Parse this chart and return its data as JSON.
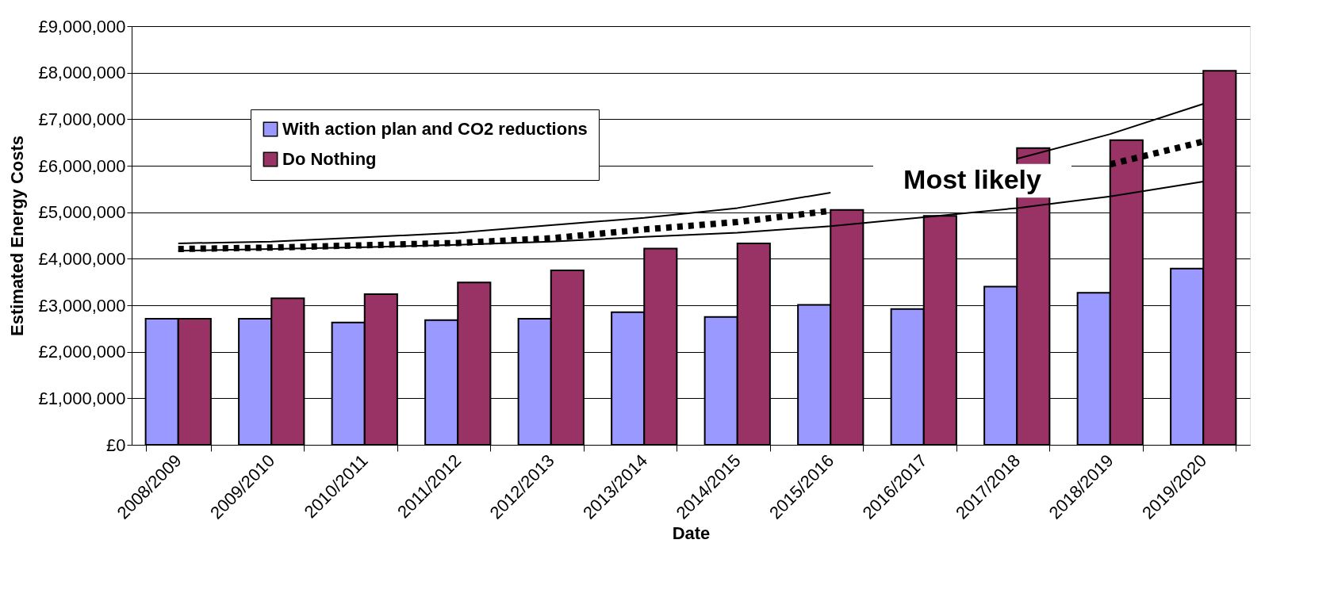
{
  "chart_data": {
    "type": "bar",
    "xlabel": "Date",
    "ylabel": "Estimated Energy Costs",
    "categories": [
      "2008/2009",
      "2009/2010",
      "2010/2011",
      "2011/2012",
      "2012/2013",
      "2013/2014",
      "2014/2015",
      "2015/2016",
      "2016/2017",
      "2017/2018",
      "2018/2019",
      "2019/2020"
    ],
    "series": [
      {
        "name": "With action plan and CO2 reductions",
        "color": "#9999ff",
        "values": [
          2710000,
          2710000,
          2630000,
          2680000,
          2710000,
          2850000,
          2750000,
          3010000,
          2920000,
          3400000,
          3270000,
          3790000
        ]
      },
      {
        "name": "Do Nothing",
        "color": "#993366",
        "values": [
          2710000,
          3150000,
          3240000,
          3490000,
          3750000,
          4220000,
          4330000,
          5050000,
          4920000,
          6380000,
          6550000,
          8040000
        ]
      },
      {
        "type": "line",
        "color": "#000000",
        "line_style": "solid",
        "values": [
          4330000,
          4370000,
          4460000,
          4560000,
          4720000,
          4880000,
          5090000,
          5420000,
          null,
          6150000,
          6680000,
          7330000
        ]
      },
      {
        "type": "line",
        "color": "#000000",
        "line_style": "dotted",
        "values": [
          4210000,
          4240000,
          4290000,
          4340000,
          4440000,
          4630000,
          4790000,
          5030000,
          null,
          null,
          6030000,
          6520000
        ]
      },
      {
        "type": "line",
        "color": "#000000",
        "line_style": "solid",
        "values": [
          4170000,
          4210000,
          4250000,
          4300000,
          4370000,
          4470000,
          4560000,
          4700000,
          4890000,
          5090000,
          5340000,
          5660000
        ]
      }
    ],
    "ylim": [
      0,
      9000000
    ],
    "yticks": [
      {
        "value": 0,
        "label": "£0"
      },
      {
        "value": 1000000,
        "label": "£1,000,000"
      },
      {
        "value": 2000000,
        "label": "£2,000,000"
      },
      {
        "value": 3000000,
        "label": "£3,000,000"
      },
      {
        "value": 4000000,
        "label": "£4,000,000"
      },
      {
        "value": 5000000,
        "label": "£5,000,000"
      },
      {
        "value": 6000000,
        "label": "£6,000,000"
      },
      {
        "value": 7000000,
        "label": "£7,000,000"
      },
      {
        "value": 8000000,
        "label": "£8,000,000"
      },
      {
        "value": 9000000,
        "label": "£9,000,000"
      }
    ],
    "annotations": [
      "Most likely"
    ],
    "grid": "y",
    "legend": "top left"
  }
}
